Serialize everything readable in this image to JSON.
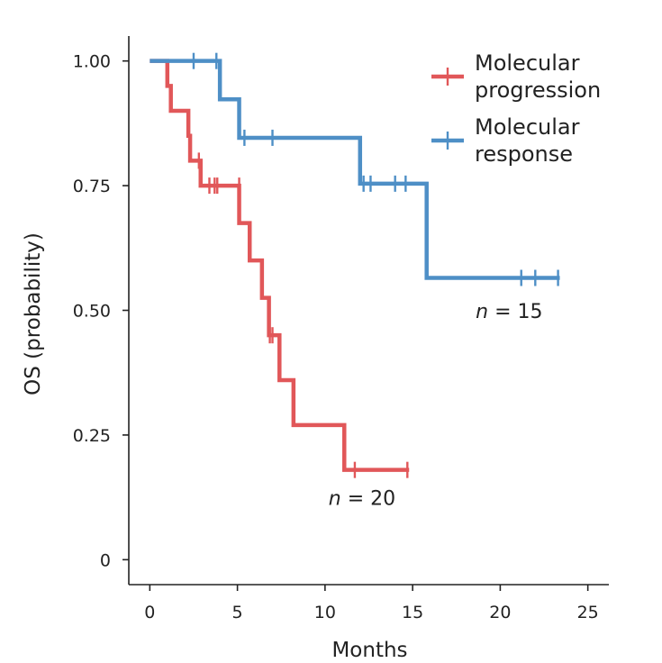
{
  "colors": {
    "progression": "#e15759",
    "response": "#4e8fc6",
    "axis": "#222222"
  },
  "chart_data": {
    "type": "line",
    "subtype": "kaplan-meier step",
    "title": "",
    "xlabel": "Months",
    "ylabel": "OS (probability)",
    "xlim": [
      -1.2,
      26.2
    ],
    "ylim": [
      -0.05,
      1.05
    ],
    "x_ticks": [
      0,
      5,
      10,
      15,
      20,
      25
    ],
    "x_tick_labels": [
      "0",
      "5",
      "10",
      "15",
      "20",
      "25"
    ],
    "y_ticks": [
      0,
      0.25,
      0.5,
      0.75,
      1.0
    ],
    "y_tick_labels": [
      "0",
      "0.25",
      "0.50",
      "0.75",
      "1.00"
    ],
    "grid": false,
    "legend_position": "top-right",
    "series": [
      {
        "name": "Molecular progression",
        "color_key": "progression",
        "n_label_prefix": "n",
        "n_label_suffix": " = 20",
        "n_label_anchor": [
          10.2,
          0.11
        ],
        "steps": [
          [
            0,
            1.0
          ],
          [
            1.0,
            0.95
          ],
          [
            1.2,
            0.9
          ],
          [
            2.2,
            0.85
          ],
          [
            2.3,
            0.8
          ],
          [
            2.9,
            0.75
          ],
          [
            5.1,
            0.675
          ],
          [
            5.7,
            0.6
          ],
          [
            6.4,
            0.525
          ],
          [
            6.8,
            0.45
          ],
          [
            7.4,
            0.36
          ],
          [
            8.2,
            0.27
          ],
          [
            11.1,
            0.18
          ]
        ],
        "end_x": 14.8,
        "censored": [
          [
            2.8,
            0.8
          ],
          [
            3.4,
            0.75
          ],
          [
            3.7,
            0.75
          ],
          [
            3.85,
            0.75
          ],
          [
            5.1,
            0.75
          ],
          [
            6.85,
            0.45
          ],
          [
            7.0,
            0.45
          ],
          [
            11.7,
            0.18
          ],
          [
            14.7,
            0.18
          ]
        ]
      },
      {
        "name": "Molecular response",
        "color_key": "response",
        "n_label_prefix": "n",
        "n_label_suffix": " = 15",
        "n_label_anchor": [
          18.6,
          0.485
        ],
        "steps": [
          [
            0,
            1.0
          ],
          [
            4.0,
            0.923
          ],
          [
            5.1,
            0.846
          ],
          [
            12.0,
            0.754
          ],
          [
            15.8,
            0.565
          ]
        ],
        "end_x": 23.4,
        "censored": [
          [
            2.5,
            1.0
          ],
          [
            3.8,
            1.0
          ],
          [
            5.4,
            0.846
          ],
          [
            7.0,
            0.846
          ],
          [
            12.2,
            0.754
          ],
          [
            12.6,
            0.754
          ],
          [
            14.0,
            0.754
          ],
          [
            14.6,
            0.754
          ],
          [
            21.2,
            0.565
          ],
          [
            22.0,
            0.565
          ],
          [
            23.3,
            0.565
          ]
        ]
      }
    ],
    "legend": [
      {
        "label_lines": [
          "Molecular",
          "progression"
        ],
        "color_key": "progression"
      },
      {
        "label_lines": [
          "Molecular",
          "response"
        ],
        "color_key": "response"
      }
    ]
  }
}
